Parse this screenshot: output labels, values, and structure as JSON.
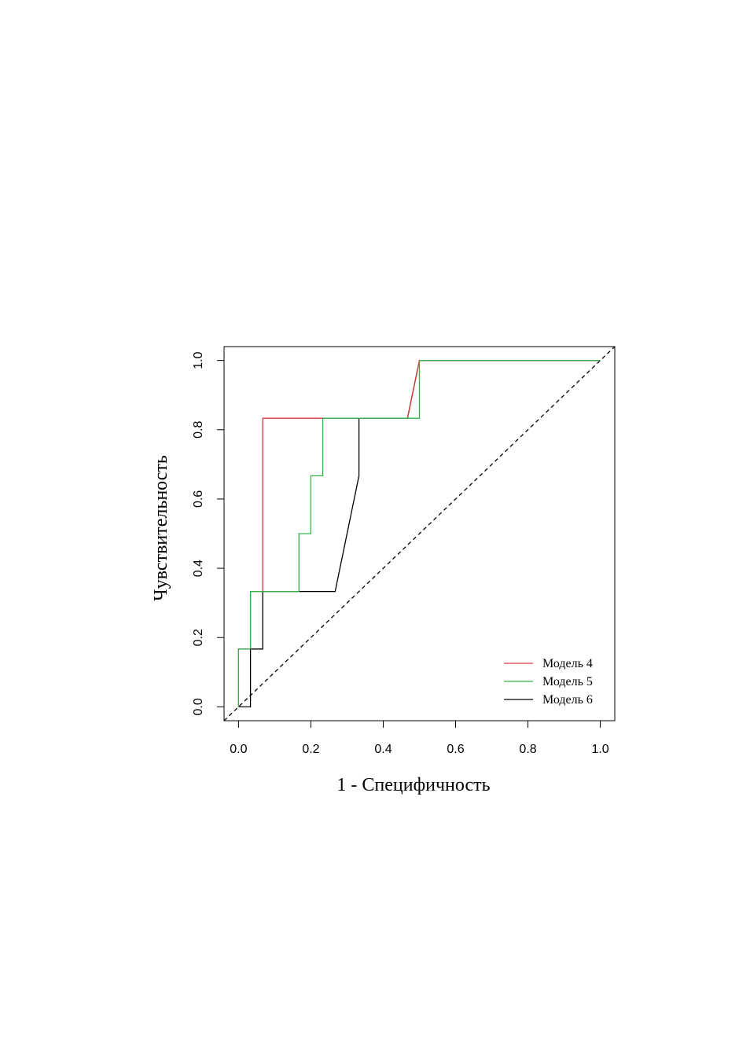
{
  "chart_data": {
    "type": "line",
    "title": "",
    "xlabel": "1 - Специфичность",
    "ylabel": "Чувствительность",
    "xlim": [
      -0.04,
      1.04
    ],
    "ylim": [
      -0.04,
      1.04
    ],
    "xticks": [
      "0.0",
      "0.2",
      "0.4",
      "0.6",
      "0.8",
      "1.0"
    ],
    "yticks": [
      "0.0",
      "0.2",
      "0.4",
      "0.6",
      "0.8",
      "1.0"
    ],
    "grid": false,
    "legend_position": "bottom-right",
    "reference_line": {
      "style": "dashed",
      "color": "#000000",
      "x": [
        0,
        1
      ],
      "y": [
        0,
        1
      ]
    },
    "series": [
      {
        "name": "Модель 4",
        "color": "#e0393e",
        "x": [
          0,
          0,
          0.033,
          0.033,
          0.067,
          0.067,
          0.467,
          0.5,
          1.0
        ],
        "y": [
          0,
          0.167,
          0.167,
          0.333,
          0.333,
          0.833,
          0.833,
          1.0,
          1.0
        ]
      },
      {
        "name": "Модель 5",
        "color": "#33b24a",
        "x": [
          0,
          0,
          0.033,
          0.033,
          0.167,
          0.167,
          0.2,
          0.2,
          0.233,
          0.233,
          0.5,
          0.5,
          1.0
        ],
        "y": [
          0,
          0.167,
          0.167,
          0.333,
          0.333,
          0.5,
          0.5,
          0.667,
          0.667,
          0.833,
          0.833,
          1.0,
          1.0
        ]
      },
      {
        "name": "Модель 6",
        "color": "#000000",
        "x": [
          0,
          0.033,
          0.033,
          0.067,
          0.067,
          0.267,
          0.333,
          0.333,
          0.467,
          0.5,
          1.0
        ],
        "y": [
          0,
          0,
          0.167,
          0.167,
          0.333,
          0.333,
          0.667,
          0.833,
          0.833,
          1.0,
          1.0
        ]
      }
    ]
  }
}
